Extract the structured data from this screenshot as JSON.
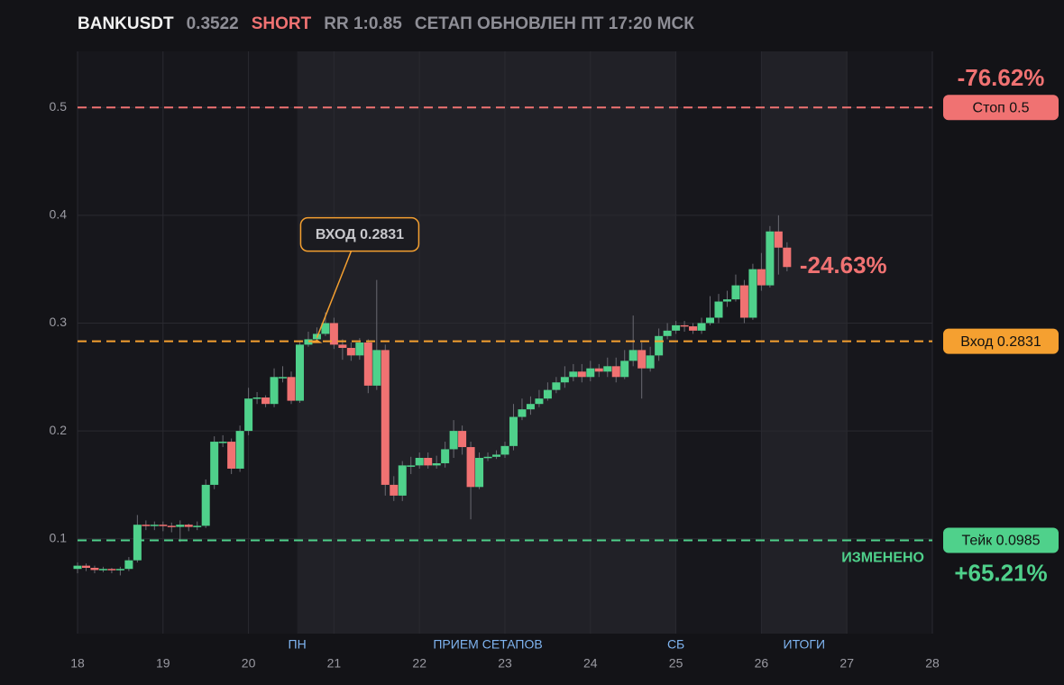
{
  "header": {
    "symbol": "BANKUSDT",
    "price": "0.3522",
    "side": "SHORT",
    "rr": "RR 1:0.85",
    "updated": "СЕТАП ОБНОВЛЕН ПТ 17:20 МСК"
  },
  "chart_data": {
    "type": "candlestick",
    "x": [
      18.0,
      18.1,
      18.2,
      18.3,
      18.4,
      18.5,
      18.6,
      18.7,
      18.8,
      18.9,
      19.0,
      19.1,
      19.2,
      19.3,
      19.4,
      19.5,
      19.6,
      19.7,
      19.8,
      19.9,
      20.0,
      20.1,
      20.2,
      20.3,
      20.4,
      20.5,
      20.6,
      20.7,
      20.8,
      20.9,
      21.0,
      21.1,
      21.2,
      21.3,
      21.4,
      21.5,
      21.6,
      21.7,
      21.8,
      21.9,
      22.0,
      22.1,
      22.2,
      22.3,
      22.4,
      22.5,
      22.6,
      22.7,
      22.8,
      22.9,
      23.0,
      23.1,
      23.2,
      23.3,
      23.4,
      23.5,
      23.6,
      23.7,
      23.8,
      23.9,
      24.0,
      24.1,
      24.2,
      24.3,
      24.4,
      24.5,
      24.6,
      24.7,
      24.8,
      24.9,
      25.0,
      25.1,
      25.2,
      25.3,
      25.4,
      25.5,
      25.6,
      25.7,
      25.8,
      25.9,
      26.0,
      26.1,
      26.2,
      26.3
    ],
    "open": [
      0.072,
      0.075,
      0.073,
      0.071,
      0.072,
      0.071,
      0.072,
      0.08,
      0.113,
      0.112,
      0.113,
      0.112,
      0.111,
      0.113,
      0.111,
      0.112,
      0.15,
      0.19,
      0.19,
      0.165,
      0.2,
      0.23,
      0.231,
      0.225,
      0.25,
      0.25,
      0.228,
      0.28,
      0.285,
      0.29,
      0.3,
      0.28,
      0.277,
      0.27,
      0.282,
      0.242,
      0.275,
      0.15,
      0.14,
      0.168,
      0.168,
      0.175,
      0.168,
      0.17,
      0.183,
      0.2,
      0.185,
      0.148,
      0.175,
      0.176,
      0.178,
      0.186,
      0.213,
      0.22,
      0.225,
      0.23,
      0.238,
      0.245,
      0.25,
      0.255,
      0.25,
      0.258,
      0.255,
      0.26,
      0.25,
      0.265,
      0.275,
      0.258,
      0.27,
      0.288,
      0.293,
      0.298,
      0.297,
      0.293,
      0.3,
      0.305,
      0.32,
      0.322,
      0.335,
      0.305,
      0.35,
      0.335,
      0.385,
      0.37
    ],
    "high": [
      0.078,
      0.077,
      0.075,
      0.074,
      0.073,
      0.074,
      0.083,
      0.122,
      0.117,
      0.116,
      0.116,
      0.115,
      0.117,
      0.114,
      0.116,
      0.155,
      0.195,
      0.196,
      0.193,
      0.205,
      0.24,
      0.236,
      0.233,
      0.258,
      0.26,
      0.255,
      0.284,
      0.292,
      0.296,
      0.31,
      0.305,
      0.285,
      0.282,
      0.286,
      0.285,
      0.34,
      0.28,
      0.158,
      0.172,
      0.176,
      0.18,
      0.18,
      0.177,
      0.19,
      0.21,
      0.205,
      0.19,
      0.18,
      0.18,
      0.182,
      0.19,
      0.225,
      0.23,
      0.232,
      0.238,
      0.245,
      0.25,
      0.26,
      0.262,
      0.262,
      0.265,
      0.262,
      0.268,
      0.268,
      0.275,
      0.307,
      0.282,
      0.278,
      0.295,
      0.3,
      0.302,
      0.302,
      0.3,
      0.305,
      0.325,
      0.327,
      0.33,
      0.345,
      0.34,
      0.355,
      0.365,
      0.39,
      0.4,
      0.375
    ],
    "low": [
      0.068,
      0.07,
      0.068,
      0.069,
      0.068,
      0.066,
      0.07,
      0.078,
      0.108,
      0.108,
      0.107,
      0.106,
      0.097,
      0.107,
      0.108,
      0.11,
      0.146,
      0.185,
      0.16,
      0.162,
      0.196,
      0.225,
      0.222,
      0.222,
      0.245,
      0.225,
      0.226,
      0.278,
      0.282,
      0.288,
      0.276,
      0.266,
      0.265,
      0.266,
      0.235,
      0.238,
      0.14,
      0.135,
      0.135,
      0.16,
      0.165,
      0.165,
      0.165,
      0.166,
      0.175,
      0.178,
      0.118,
      0.146,
      0.172,
      0.174,
      0.175,
      0.182,
      0.21,
      0.215,
      0.222,
      0.228,
      0.235,
      0.24,
      0.246,
      0.245,
      0.246,
      0.25,
      0.25,
      0.245,
      0.248,
      0.26,
      0.23,
      0.255,
      0.265,
      0.285,
      0.29,
      0.292,
      0.29,
      0.29,
      0.298,
      0.3,
      0.315,
      0.32,
      0.3,
      0.303,
      0.33,
      0.333,
      0.345,
      0.348
    ],
    "close": [
      0.075,
      0.073,
      0.071,
      0.072,
      0.071,
      0.072,
      0.08,
      0.113,
      0.112,
      0.113,
      0.112,
      0.111,
      0.113,
      0.111,
      0.112,
      0.15,
      0.19,
      0.19,
      0.165,
      0.2,
      0.23,
      0.231,
      0.225,
      0.25,
      0.25,
      0.228,
      0.28,
      0.285,
      0.29,
      0.3,
      0.28,
      0.277,
      0.27,
      0.282,
      0.242,
      0.275,
      0.15,
      0.14,
      0.168,
      0.168,
      0.175,
      0.168,
      0.17,
      0.183,
      0.2,
      0.185,
      0.148,
      0.175,
      0.176,
      0.178,
      0.186,
      0.213,
      0.22,
      0.225,
      0.23,
      0.238,
      0.245,
      0.25,
      0.255,
      0.25,
      0.258,
      0.255,
      0.26,
      0.25,
      0.265,
      0.275,
      0.258,
      0.27,
      0.288,
      0.293,
      0.298,
      0.297,
      0.293,
      0.3,
      0.305,
      0.32,
      0.322,
      0.335,
      0.305,
      0.35,
      0.335,
      0.385,
      0.37,
      0.352
    ],
    "up_color": "#4fd18b",
    "down_color": "#f07272",
    "xlim": [
      18,
      28
    ],
    "xticks": [
      18,
      19,
      20,
      21,
      22,
      23,
      24,
      25,
      26,
      27,
      28
    ],
    "ylim": [
      0.012,
      0.552
    ],
    "yticks": [
      0.1,
      0.2,
      0.3,
      0.4,
      0.5
    ],
    "grid": true,
    "shaded": [
      [
        20.57,
        25.0
      ],
      [
        26.0,
        27.0
      ]
    ],
    "session_labels": [
      {
        "text": "ПН",
        "x": 20.57
      },
      {
        "text": "ПРИЕМ СЕТАПОВ",
        "x": 22.8
      },
      {
        "text": "СБ",
        "x": 25.0
      },
      {
        "text": "ИТОГИ",
        "x": 26.5
      }
    ],
    "levels": [
      {
        "label": "Стоп 0.5",
        "value": 0.5,
        "color": "#f07272",
        "change": "-76.62%"
      },
      {
        "label": "Вход 0.2831",
        "value": 0.2831,
        "color": "#f5a030"
      },
      {
        "label": "Тейк 0.0985",
        "value": 0.0985,
        "color": "#4fd18b",
        "change": "+65.21%",
        "note": "ИЗМЕНЕНО"
      }
    ],
    "annotation": {
      "text": "ВХОД 0.2831",
      "x": 20.8,
      "y": 0.2831
    },
    "current_change": "-24.63%"
  }
}
